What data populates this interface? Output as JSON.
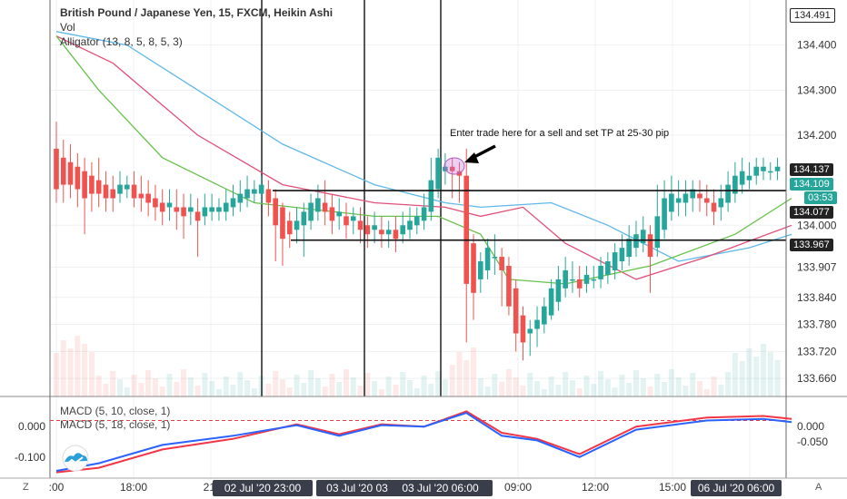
{
  "header": {
    "title": "British Pound / Japanese Yen, 15, FXCM, Heikin Ashi",
    "vol_label": "Vol",
    "alligator_label": "Alligator (13, 8, 5, 8, 5, 3)"
  },
  "annotation": {
    "text": "Enter trade here for a sell and set TP at 25-30 pip"
  },
  "macd": {
    "label1": "MACD (5, 10, close, 1)",
    "label2": "MACD (5, 18, close, 1)",
    "left_ticks": [
      "0.000",
      "-0.100"
    ],
    "right_ticks": [
      "0.000",
      "-0.050"
    ]
  },
  "price_axis": {
    "ticks": [
      "134.400",
      "134.300",
      "134.200",
      "134.000",
      "133.907",
      "133.840",
      "133.780",
      "133.720",
      "133.660"
    ],
    "top_label": "134.491",
    "current_price": "134.137",
    "last_price": "134.109",
    "countdown": "03:53",
    "level_high": "134.077",
    "level_low": "133.967"
  },
  "time_axis": {
    "ticks": [
      ":00",
      "18:00",
      "21:",
      "09:00",
      "12:00",
      "15:00"
    ],
    "highlight_labels": [
      "02 Jul '20",
      "23:00",
      "03 Jul '20",
      "03",
      "03 Jul '20",
      "06:00",
      "06 Jul '20",
      "06:00"
    ]
  },
  "corners": {
    "bottom_left": "Z",
    "bottom_right": "A"
  },
  "colors": {
    "bull": "#26a69a",
    "bear": "#ef5350",
    "jaw": "#5fb8e8",
    "teeth": "#e0507a",
    "lips": "#66c24a",
    "macd_blue": "#2962ff",
    "macd_red": "#f23645"
  },
  "chart_data": {
    "type": "candlestick",
    "title": "British Pound / Japanese Yen, 15, FXCM, Heikin Ashi",
    "ylim": [
      133.62,
      134.5
    ],
    "horizontal_levels": [
      134.077,
      133.967
    ],
    "candles": [
      {
        "o": 134.17,
        "c": 134.08,
        "h": 134.23,
        "l": 134.05
      },
      {
        "o": 134.15,
        "c": 134.09,
        "h": 134.19,
        "l": 134.05
      },
      {
        "o": 134.14,
        "c": 134.09,
        "h": 134.18,
        "l": 134.06
      },
      {
        "o": 134.13,
        "c": 134.08,
        "h": 134.16,
        "l": 134.04
      },
      {
        "o": 134.12,
        "c": 134.06,
        "h": 134.15,
        "l": 133.98
      },
      {
        "o": 134.11,
        "c": 134.07,
        "h": 134.14,
        "l": 134.03
      },
      {
        "o": 134.1,
        "c": 134.07,
        "h": 134.15,
        "l": 134.04
      },
      {
        "o": 134.09,
        "c": 134.06,
        "h": 134.12,
        "l": 134.03
      },
      {
        "o": 134.08,
        "c": 134.06,
        "h": 134.11,
        "l": 134.03
      },
      {
        "o": 134.07,
        "c": 134.09,
        "h": 134.12,
        "l": 134.05
      },
      {
        "o": 134.08,
        "c": 134.09,
        "h": 134.11,
        "l": 134.06
      },
      {
        "o": 134.09,
        "c": 134.06,
        "h": 134.12,
        "l": 134.04
      },
      {
        "o": 134.07,
        "c": 134.06,
        "h": 134.11,
        "l": 134.03
      },
      {
        "o": 134.07,
        "c": 134.05,
        "h": 134.1,
        "l": 134.02
      },
      {
        "o": 134.06,
        "c": 134.04,
        "h": 134.09,
        "l": 134.01
      },
      {
        "o": 134.05,
        "c": 134.03,
        "h": 134.08,
        "l": 134.0
      },
      {
        "o": 134.04,
        "c": 134.05,
        "h": 134.08,
        "l": 134.01
      },
      {
        "o": 134.04,
        "c": 134.03,
        "h": 134.08,
        "l": 133.99
      },
      {
        "o": 134.04,
        "c": 134.02,
        "h": 134.07,
        "l": 133.97
      },
      {
        "o": 134.03,
        "c": 134.04,
        "h": 134.07,
        "l": 134.0
      },
      {
        "o": 134.03,
        "c": 134.01,
        "h": 134.06,
        "l": 133.93
      },
      {
        "o": 134.02,
        "c": 134.04,
        "h": 134.07,
        "l": 134.0
      },
      {
        "o": 134.03,
        "c": 134.04,
        "h": 134.07,
        "l": 134.01
      },
      {
        "o": 134.03,
        "c": 134.04,
        "h": 134.06,
        "l": 134.01
      },
      {
        "o": 134.03,
        "c": 134.05,
        "h": 134.08,
        "l": 134.01
      },
      {
        "o": 134.04,
        "c": 134.06,
        "h": 134.09,
        "l": 134.02
      },
      {
        "o": 134.05,
        "c": 134.07,
        "h": 134.1,
        "l": 134.03
      },
      {
        "o": 134.06,
        "c": 134.08,
        "h": 134.11,
        "l": 134.04
      },
      {
        "o": 134.07,
        "c": 134.08,
        "h": 134.1,
        "l": 134.05
      },
      {
        "o": 134.07,
        "c": 134.09,
        "h": 134.11,
        "l": 134.05
      },
      {
        "o": 134.08,
        "c": 134.05,
        "h": 134.1,
        "l": 134.02
      },
      {
        "o": 134.06,
        "c": 134.0,
        "h": 134.08,
        "l": 133.92
      },
      {
        "o": 134.04,
        "c": 133.97,
        "h": 134.05,
        "l": 133.91
      },
      {
        "o": 134.01,
        "c": 133.98,
        "h": 134.03,
        "l": 133.95
      },
      {
        "o": 133.99,
        "c": 134.01,
        "h": 134.04,
        "l": 133.96
      },
      {
        "o": 134.0,
        "c": 134.03,
        "h": 134.05,
        "l": 133.93
      },
      {
        "o": 134.01,
        "c": 134.05,
        "h": 134.07,
        "l": 133.99
      },
      {
        "o": 134.03,
        "c": 134.06,
        "h": 134.09,
        "l": 134.01
      },
      {
        "o": 134.05,
        "c": 134.03,
        "h": 134.1,
        "l": 134.0
      },
      {
        "o": 134.04,
        "c": 134.01,
        "h": 134.07,
        "l": 133.98
      },
      {
        "o": 134.02,
        "c": 134.03,
        "h": 134.06,
        "l": 133.99
      },
      {
        "o": 134.02,
        "c": 134.0,
        "h": 134.05,
        "l": 133.97
      },
      {
        "o": 134.01,
        "c": 134.02,
        "h": 134.04,
        "l": 133.98
      },
      {
        "o": 134.01,
        "c": 133.99,
        "h": 134.04,
        "l": 133.96
      },
      {
        "o": 134.0,
        "c": 133.98,
        "h": 134.02,
        "l": 133.95
      },
      {
        "o": 133.99,
        "c": 134.0,
        "h": 134.03,
        "l": 133.96
      },
      {
        "o": 133.99,
        "c": 133.98,
        "h": 134.02,
        "l": 133.95
      },
      {
        "o": 133.98,
        "c": 133.99,
        "h": 134.01,
        "l": 133.95
      },
      {
        "o": 133.99,
        "c": 133.97,
        "h": 134.02,
        "l": 133.94
      },
      {
        "o": 133.98,
        "c": 134.0,
        "h": 134.03,
        "l": 133.96
      },
      {
        "o": 133.99,
        "c": 134.01,
        "h": 134.04,
        "l": 133.97
      },
      {
        "o": 134.0,
        "c": 134.02,
        "h": 134.04,
        "l": 133.98
      },
      {
        "o": 134.01,
        "c": 134.04,
        "h": 134.07,
        "l": 133.99
      },
      {
        "o": 134.03,
        "c": 134.1,
        "h": 134.15,
        "l": 134.01
      },
      {
        "o": 134.08,
        "c": 134.15,
        "h": 134.17,
        "l": 134.06
      },
      {
        "o": 134.12,
        "c": 134.13,
        "h": 134.16,
        "l": 134.09
      },
      {
        "o": 134.13,
        "c": 134.12,
        "h": 134.15,
        "l": 134.06
      },
      {
        "o": 134.12,
        "c": 134.11,
        "h": 134.14,
        "l": 134.05
      },
      {
        "o": 134.11,
        "c": 133.87,
        "h": 134.17,
        "l": 133.74
      },
      {
        "o": 133.96,
        "c": 133.85,
        "h": 133.98,
        "l": 133.79
      },
      {
        "o": 133.88,
        "c": 133.92,
        "h": 133.94,
        "l": 133.85
      },
      {
        "o": 133.9,
        "c": 133.95,
        "h": 133.97,
        "l": 133.88
      },
      {
        "o": 133.93,
        "c": 133.93,
        "h": 133.98,
        "l": 133.89
      },
      {
        "o": 133.93,
        "c": 133.9,
        "h": 133.95,
        "l": 133.82
      },
      {
        "o": 133.91,
        "c": 133.82,
        "h": 133.93,
        "l": 133.8
      },
      {
        "o": 133.86,
        "c": 133.76,
        "h": 133.88,
        "l": 133.72
      },
      {
        "o": 133.8,
        "c": 133.74,
        "h": 133.82,
        "l": 133.7
      },
      {
        "o": 133.76,
        "c": 133.77,
        "h": 133.79,
        "l": 133.71
      },
      {
        "o": 133.77,
        "c": 133.79,
        "h": 133.82,
        "l": 133.73
      },
      {
        "o": 133.78,
        "c": 133.82,
        "h": 133.84,
        "l": 133.76
      },
      {
        "o": 133.8,
        "c": 133.86,
        "h": 133.88,
        "l": 133.79
      },
      {
        "o": 133.83,
        "c": 133.88,
        "h": 133.91,
        "l": 133.81
      },
      {
        "o": 133.86,
        "c": 133.9,
        "h": 133.93,
        "l": 133.84
      },
      {
        "o": 133.88,
        "c": 133.88,
        "h": 133.92,
        "l": 133.85
      },
      {
        "o": 133.88,
        "c": 133.86,
        "h": 133.91,
        "l": 133.84
      },
      {
        "o": 133.87,
        "c": 133.89,
        "h": 133.91,
        "l": 133.85
      },
      {
        "o": 133.88,
        "c": 133.88,
        "h": 133.91,
        "l": 133.86
      },
      {
        "o": 133.88,
        "c": 133.91,
        "h": 133.93,
        "l": 133.86
      },
      {
        "o": 133.89,
        "c": 133.92,
        "h": 133.94,
        "l": 133.87
      },
      {
        "o": 133.9,
        "c": 133.94,
        "h": 133.96,
        "l": 133.88
      },
      {
        "o": 133.92,
        "c": 133.95,
        "h": 133.98,
        "l": 133.9
      },
      {
        "o": 133.93,
        "c": 133.97,
        "h": 134.0,
        "l": 133.91
      },
      {
        "o": 133.95,
        "c": 133.98,
        "h": 134.01,
        "l": 133.93
      },
      {
        "o": 133.96,
        "c": 133.99,
        "h": 134.02,
        "l": 133.94
      },
      {
        "o": 133.98,
        "c": 133.93,
        "h": 134.0,
        "l": 133.85
      },
      {
        "o": 133.95,
        "c": 134.02,
        "h": 134.09,
        "l": 133.93
      },
      {
        "o": 133.99,
        "c": 134.06,
        "h": 134.1,
        "l": 133.97
      },
      {
        "o": 134.03,
        "c": 134.07,
        "h": 134.11,
        "l": 134.01
      },
      {
        "o": 134.05,
        "c": 134.06,
        "h": 134.1,
        "l": 134.02
      },
      {
        "o": 134.05,
        "c": 134.07,
        "h": 134.1,
        "l": 134.02
      },
      {
        "o": 134.06,
        "c": 134.08,
        "h": 134.1,
        "l": 134.03
      },
      {
        "o": 134.07,
        "c": 134.06,
        "h": 134.1,
        "l": 134.03
      },
      {
        "o": 134.06,
        "c": 134.05,
        "h": 134.09,
        "l": 134.02
      },
      {
        "o": 134.05,
        "c": 134.03,
        "h": 134.08,
        "l": 134.0
      },
      {
        "o": 134.04,
        "c": 134.06,
        "h": 134.09,
        "l": 134.01
      },
      {
        "o": 134.05,
        "c": 134.09,
        "h": 134.12,
        "l": 134.03
      },
      {
        "o": 134.07,
        "c": 134.11,
        "h": 134.14,
        "l": 134.05
      },
      {
        "o": 134.09,
        "c": 134.12,
        "h": 134.15,
        "l": 134.07
      },
      {
        "o": 134.1,
        "c": 134.11,
        "h": 134.14,
        "l": 134.08
      },
      {
        "o": 134.11,
        "c": 134.13,
        "h": 134.15,
        "l": 134.09
      },
      {
        "o": 134.12,
        "c": 134.13,
        "h": 134.15,
        "l": 134.1
      },
      {
        "o": 134.12,
        "c": 134.12,
        "h": 134.14,
        "l": 134.1
      },
      {
        "o": 134.12,
        "c": 134.13,
        "h": 134.15,
        "l": 134.1
      }
    ],
    "alligator": {
      "jaw": [
        [
          0,
          134.43
        ],
        [
          10,
          134.4
        ],
        [
          20,
          134.3
        ],
        [
          32,
          134.18
        ],
        [
          45,
          134.09
        ],
        [
          55,
          134.05
        ],
        [
          60,
          134.04
        ],
        [
          70,
          134.05
        ],
        [
          78,
          134.0
        ],
        [
          88,
          133.92
        ],
        [
          98,
          133.95
        ],
        [
          104,
          133.98
        ]
      ],
      "teeth": [
        [
          0,
          134.42
        ],
        [
          8,
          134.36
        ],
        [
          20,
          134.2
        ],
        [
          32,
          134.09
        ],
        [
          45,
          134.05
        ],
        [
          55,
          134.04
        ],
        [
          60,
          134.02
        ],
        [
          66,
          134.04
        ],
        [
          72,
          133.96
        ],
        [
          82,
          133.88
        ],
        [
          92,
          133.93
        ],
        [
          104,
          134.0
        ]
      ],
      "lips": [
        [
          0,
          134.42
        ],
        [
          6,
          134.3
        ],
        [
          15,
          134.15
        ],
        [
          28,
          134.05
        ],
        [
          45,
          134.02
        ],
        [
          54,
          134.02
        ],
        [
          60,
          133.98
        ],
        [
          64,
          133.88
        ],
        [
          72,
          133.87
        ],
        [
          84,
          133.91
        ],
        [
          96,
          133.98
        ],
        [
          104,
          134.06
        ]
      ]
    },
    "macd": {
      "ylim": [
        -0.16,
        0.09
      ],
      "line_blue": [
        [
          0,
          -0.145
        ],
        [
          6,
          -0.12
        ],
        [
          15,
          -0.06
        ],
        [
          25,
          -0.03
        ],
        [
          34,
          0.005
        ],
        [
          40,
          -0.03
        ],
        [
          46,
          0.005
        ],
        [
          52,
          0.0
        ],
        [
          58,
          0.045
        ],
        [
          63,
          -0.03
        ],
        [
          68,
          -0.045
        ],
        [
          74,
          -0.1
        ],
        [
          82,
          -0.01
        ],
        [
          92,
          0.02
        ],
        [
          100,
          0.025
        ],
        [
          104,
          0.015
        ]
      ],
      "line_red": [
        [
          0,
          -0.15
        ],
        [
          6,
          -0.135
        ],
        [
          15,
          -0.075
        ],
        [
          25,
          -0.04
        ],
        [
          34,
          0.008
        ],
        [
          40,
          -0.025
        ],
        [
          46,
          0.008
        ],
        [
          52,
          0.0
        ],
        [
          58,
          0.05
        ],
        [
          63,
          -0.02
        ],
        [
          68,
          -0.04
        ],
        [
          74,
          -0.09
        ],
        [
          82,
          0.0
        ],
        [
          92,
          0.03
        ],
        [
          100,
          0.035
        ],
        [
          104,
          0.025
        ]
      ],
      "dashed_level": 0.02
    }
  }
}
